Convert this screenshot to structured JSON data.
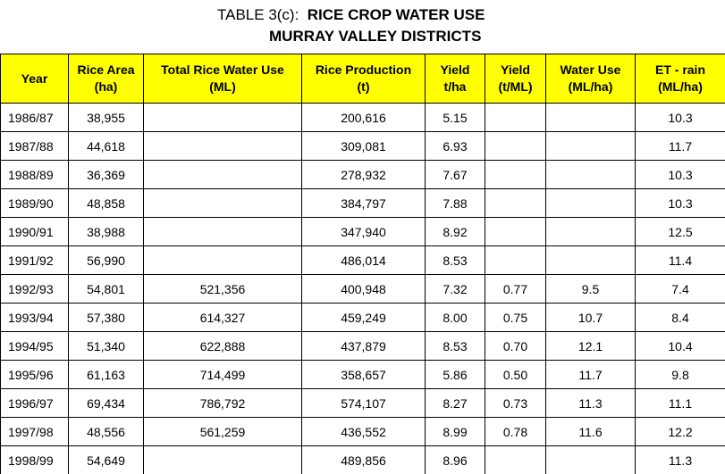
{
  "header": {
    "title_prefix": "TABLE 3(c):",
    "title": "RICE CROP WATER USE",
    "subtitle": "MURRAY VALLEY DISTRICTS"
  },
  "table": {
    "columns": [
      [
        "Year"
      ],
      [
        "Rice Area",
        "(ha)"
      ],
      [
        "Total Rice Water Use",
        "(ML)"
      ],
      [
        "Rice Production",
        "(t)"
      ],
      [
        "Yield",
        "t/ha"
      ],
      [
        "Yield",
        "(t/ML)"
      ],
      [
        "Water Use",
        "(ML/ha)"
      ],
      [
        "ET - rain",
        "(ML/ha)"
      ]
    ],
    "rows": [
      [
        "1986/87",
        "38,955",
        null,
        "200,616",
        "5.15",
        null,
        null,
        "10.3"
      ],
      [
        "1987/88",
        "44,618",
        null,
        "309,081",
        "6.93",
        null,
        null,
        "11.7"
      ],
      [
        "1988/89",
        "36,369",
        null,
        "278,932",
        "7.67",
        null,
        null,
        "10.3"
      ],
      [
        "1989/90",
        "48,858",
        null,
        "384,797",
        "7.88",
        null,
        null,
        "10.3"
      ],
      [
        "1990/91",
        "38,988",
        null,
        "347,940",
        "8.92",
        null,
        null,
        "12.5"
      ],
      [
        "1991/92",
        "56,990",
        null,
        "486,014",
        "8.53",
        null,
        null,
        "11.4"
      ],
      [
        "1992/93",
        "54,801",
        "521,356",
        "400,948",
        "7.32",
        "0.77",
        "9.5",
        "7.4"
      ],
      [
        "1993/94",
        "57,380",
        "614,327",
        "459,249",
        "8.00",
        "0.75",
        "10.7",
        "8.4"
      ],
      [
        "1994/95",
        "51,340",
        "622,888",
        "437,879",
        "8.53",
        "0.70",
        "12.1",
        "10.4"
      ],
      [
        "1995/96",
        "61,163",
        "714,499",
        "358,657",
        "5.86",
        "0.50",
        "11.7",
        "9.8"
      ],
      [
        "1996/97",
        "69,434",
        "786,792",
        "574,107",
        "8.27",
        "0.73",
        "11.3",
        "11.1"
      ],
      [
        "1997/98",
        "48,556",
        "561,259",
        "436,552",
        "8.99",
        "0.78",
        "11.6",
        "12.2"
      ],
      [
        "1998/99",
        "54,649",
        null,
        "489,856",
        "8.96",
        null,
        null,
        "11.3"
      ]
    ]
  }
}
